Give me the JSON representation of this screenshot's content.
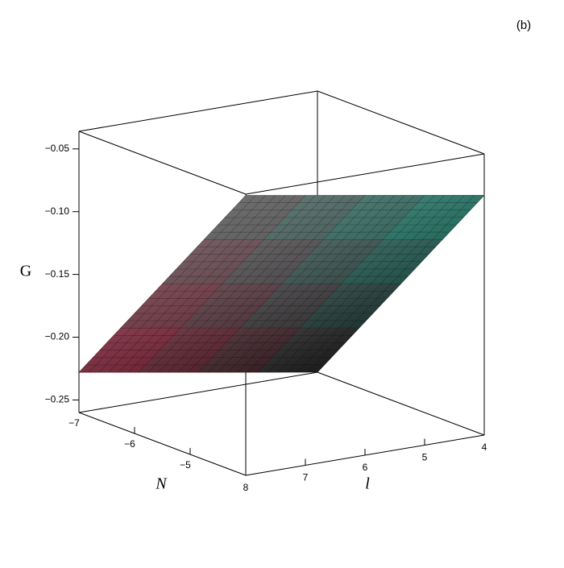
{
  "chart_data": {
    "type": "surface",
    "panel_label": "(b)",
    "xlabel": "N",
    "ylabel": "l",
    "zlabel": "G",
    "x": [
      -7,
      -6.25,
      -5.5,
      -4.75,
      -4
    ],
    "y": [
      4,
      5,
      6,
      7,
      8
    ],
    "z": [
      [
        -0.26,
        -0.2122,
        -0.1645,
        -0.1167,
        -0.069
      ],
      [
        -0.252,
        -0.2042,
        -0.1565,
        -0.1087,
        -0.061
      ],
      [
        -0.244,
        -0.1962,
        -0.1485,
        -0.1007,
        -0.053
      ],
      [
        -0.236,
        -0.1882,
        -0.1405,
        -0.0927,
        -0.045
      ],
      [
        -0.228,
        -0.1802,
        -0.1325,
        -0.0847,
        -0.037
      ]
    ],
    "xlim": [
      -7,
      -4
    ],
    "ylim": [
      4,
      8
    ],
    "zlim": [
      -0.26,
      -0.036
    ],
    "xticks": [
      {
        "value": -7,
        "label": "−7"
      },
      {
        "value": -6,
        "label": "−6"
      },
      {
        "value": -5,
        "label": "−5"
      }
    ],
    "yticks": [
      8,
      7,
      6,
      5,
      4
    ],
    "zticks": [
      {
        "value": -0.05,
        "label": "−0.05"
      },
      {
        "value": -0.1,
        "label": "−0.10"
      },
      {
        "value": -0.15,
        "label": "−0.15"
      },
      {
        "value": -0.2,
        "label": "−0.20"
      },
      {
        "value": -0.25,
        "label": "−0.25"
      }
    ],
    "corner_colors": {
      "xmin_ymax": "#8c2b40",
      "xmax_ymax": "#6e6e6e",
      "xmax_ymin": "#2a8474",
      "xmin_ymin": "#1c1c1c"
    },
    "mesh": true
  }
}
